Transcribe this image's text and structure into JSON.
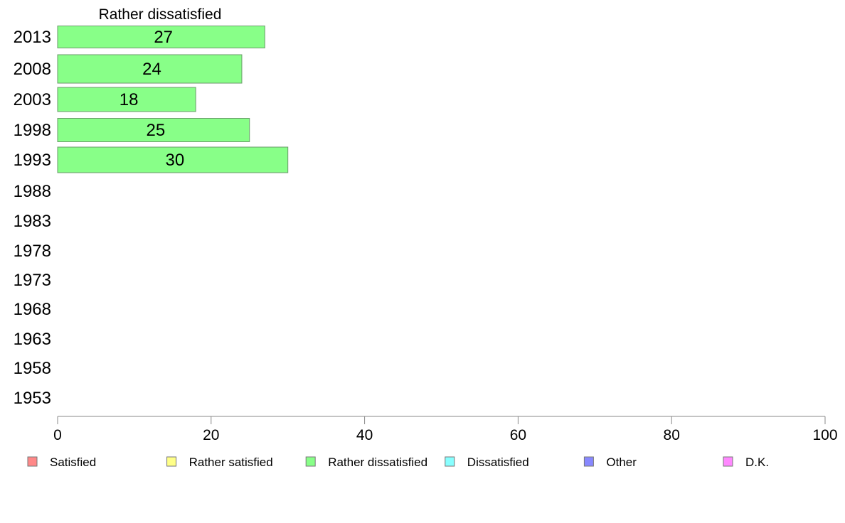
{
  "chart_data": {
    "type": "bar",
    "orientation": "horizontal",
    "title": "Rather dissatisfied",
    "categories": [
      "2013",
      "2008",
      "2003",
      "1998",
      "1993",
      "1988",
      "1983",
      "1978",
      "1973",
      "1968",
      "1963",
      "1958",
      "1953"
    ],
    "series": [
      {
        "name": "Rather dissatisfied",
        "color": "#88ff88",
        "values": [
          27,
          24,
          18,
          25,
          30,
          null,
          null,
          null,
          null,
          null,
          null,
          null,
          null
        ],
        "labels": [
          "27",
          "24",
          "18",
          "25",
          "30",
          "",
          "",
          "",
          "",
          "",
          "",
          "",
          ""
        ]
      }
    ],
    "xlim": [
      0,
      100
    ],
    "xticks": [
      "0",
      "20",
      "40",
      "60",
      "80",
      "100"
    ],
    "grid": false,
    "legend_placement": "bottom",
    "legend": [
      {
        "label": "Satisfied",
        "color": "#ff8888"
      },
      {
        "label": "Rather satisfied",
        "color": "#ffff88"
      },
      {
        "label": "Rather dissatisfied",
        "color": "#88ff88"
      },
      {
        "label": "Dissatisfied",
        "color": "#88ffff"
      },
      {
        "label": "Other",
        "color": "#8888ff"
      },
      {
        "label": "D.K.",
        "color": "#ff88ff"
      }
    ]
  }
}
